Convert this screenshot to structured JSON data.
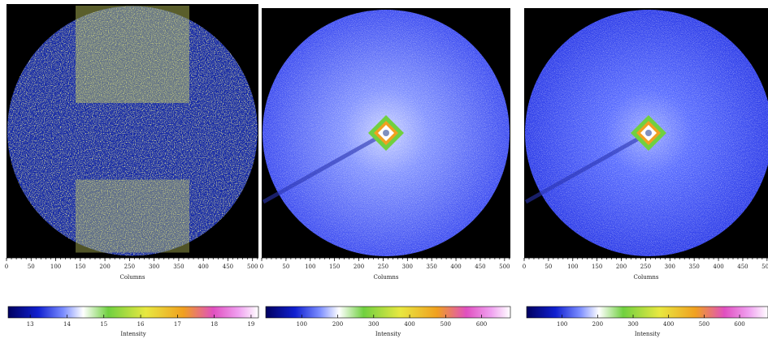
{
  "chart_data": [
    {
      "type": "heatmap",
      "xlabel": "Columns",
      "xlim": [
        0,
        512
      ],
      "xticks": [
        0,
        50,
        100,
        150,
        200,
        250,
        300,
        350,
        400,
        450,
        500
      ],
      "colorbar": {
        "label": "Intensity",
        "lim": [
          12.4,
          19.2
        ],
        "ticks": [
          13,
          14,
          15,
          16,
          17,
          18,
          19
        ]
      }
    },
    {
      "type": "heatmap",
      "xlabel": "Columns",
      "xlim": [
        0,
        512
      ],
      "xticks": [
        0,
        50,
        100,
        150,
        200,
        250,
        300,
        350,
        400,
        450,
        500
      ],
      "colorbar": {
        "label": "Intensity",
        "lim": [
          0,
          680
        ],
        "ticks": [
          100,
          200,
          300,
          400,
          500,
          600
        ]
      }
    },
    {
      "type": "heatmap",
      "xlabel": "Columns",
      "xlim": [
        0,
        512
      ],
      "xticks": [
        0,
        50,
        100,
        150,
        200,
        250,
        300,
        350,
        400,
        450,
        500
      ],
      "colorbar": {
        "label": "Intensity",
        "lim": [
          0,
          680
        ],
        "ticks": [
          100,
          200,
          300,
          400,
          500,
          600
        ]
      }
    }
  ]
}
